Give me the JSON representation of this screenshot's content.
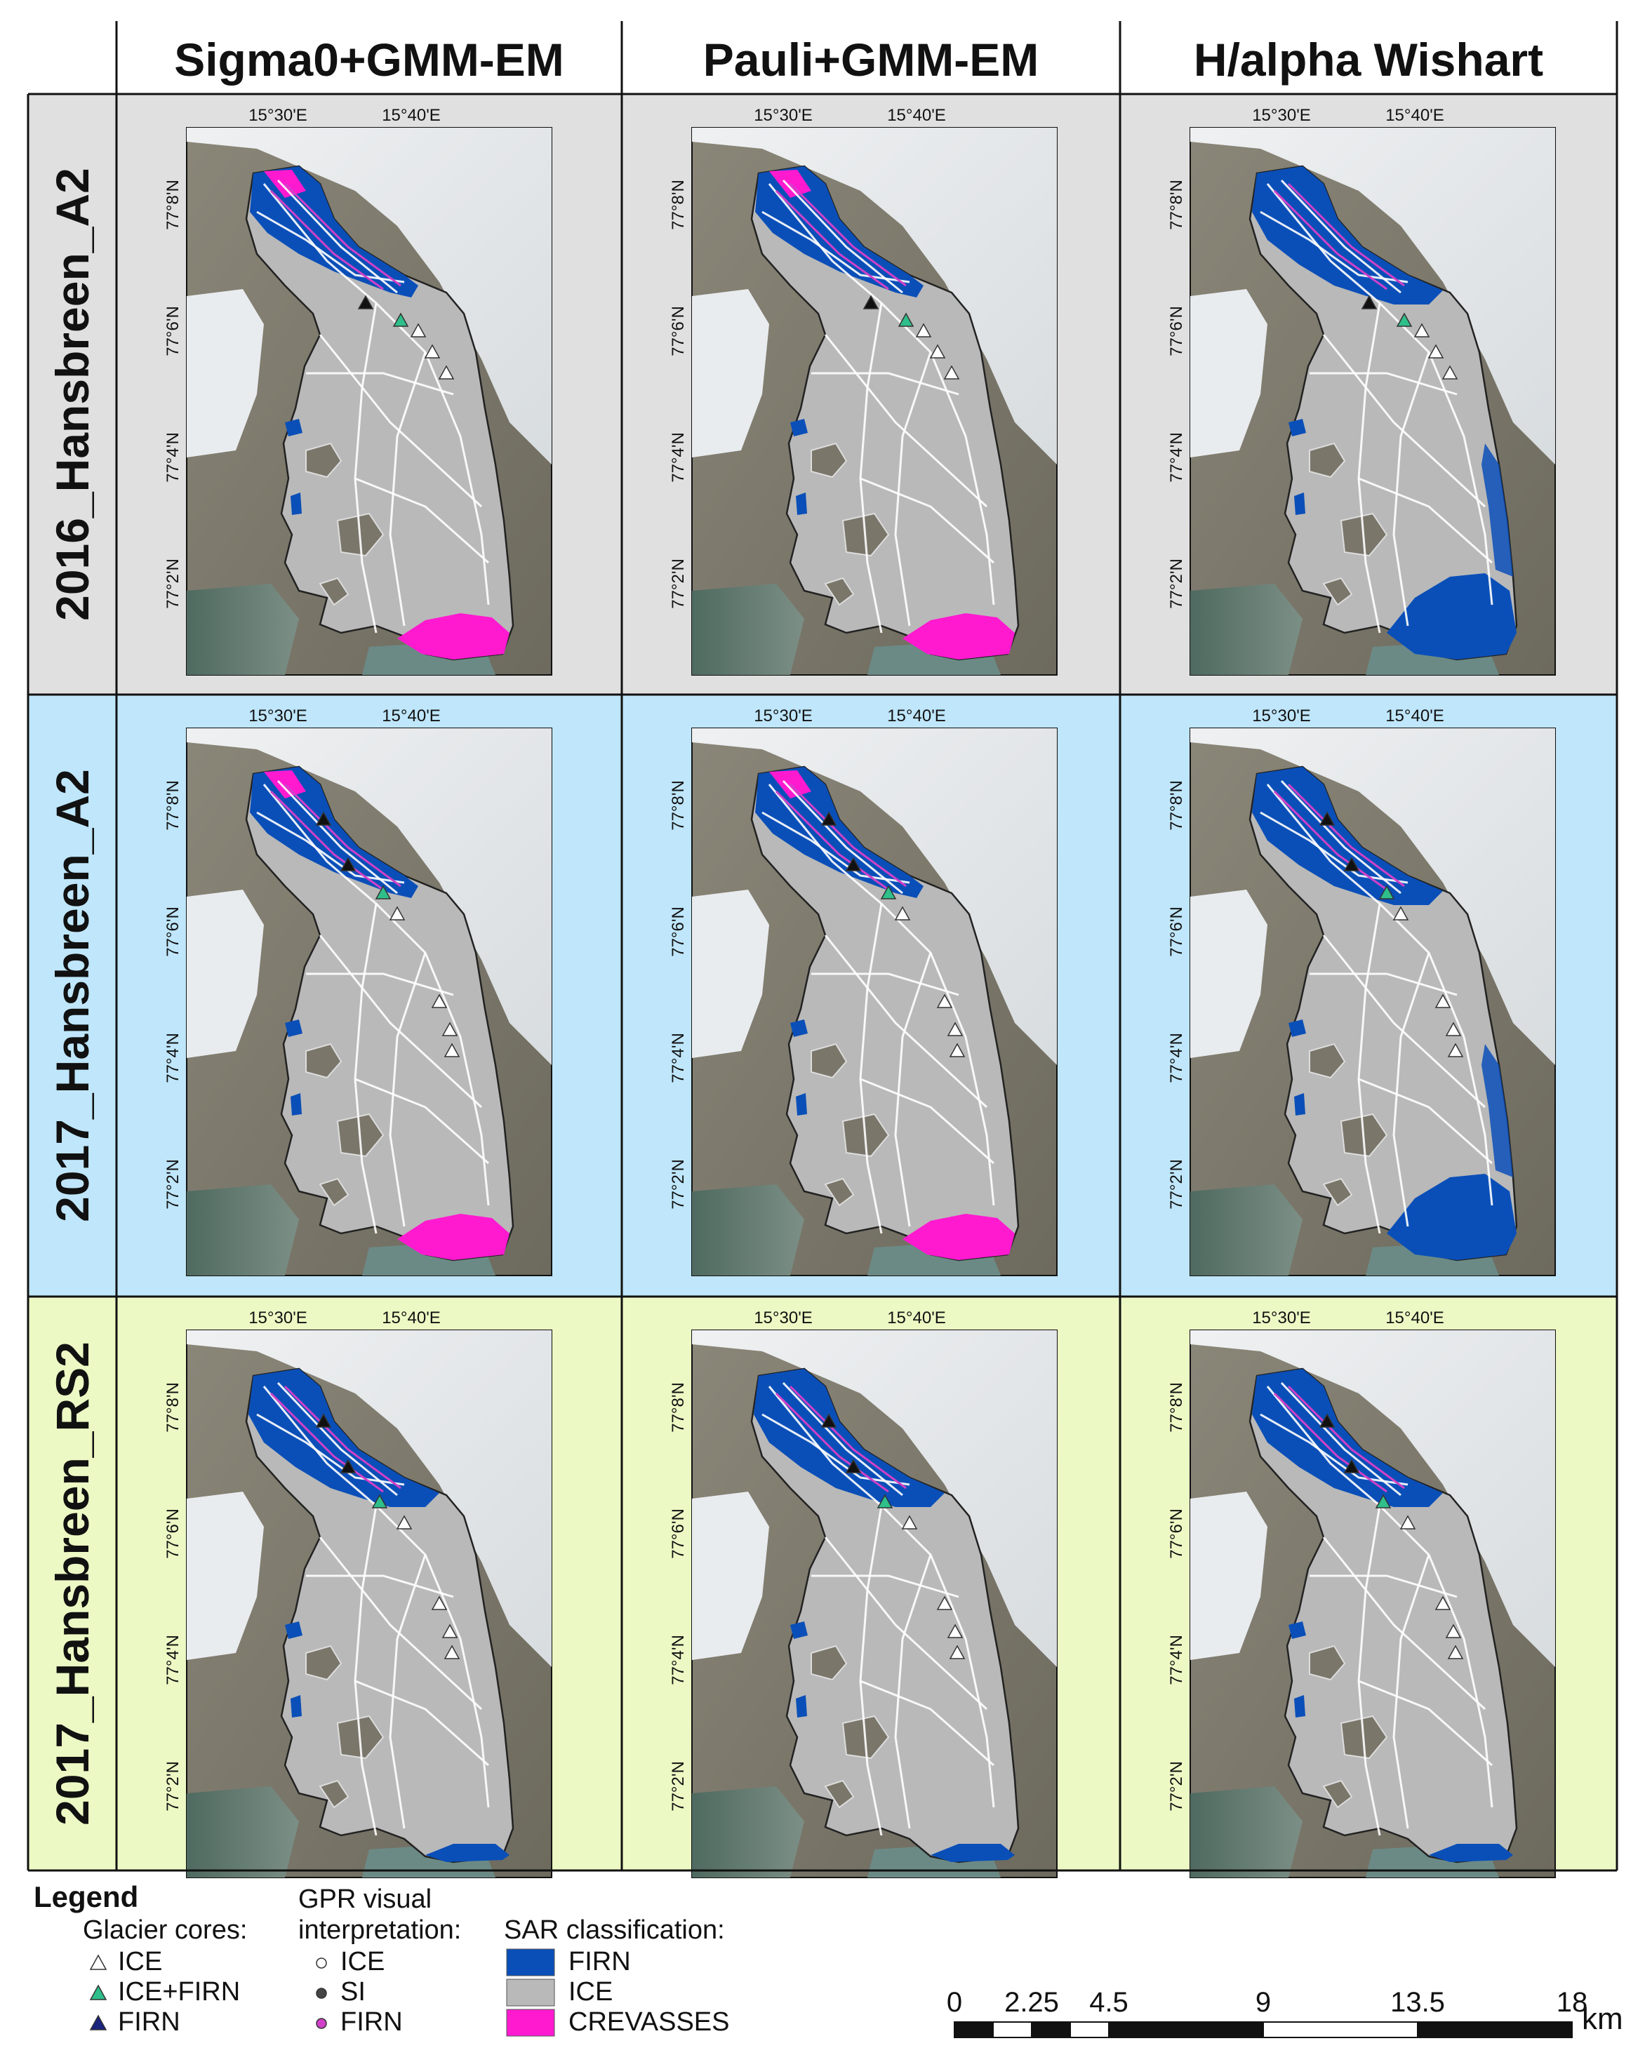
{
  "columns": [
    "Sigma0+GMM-EM",
    "Pauli+GMM-EM",
    "H/alpha Wishart"
  ],
  "rows": [
    {
      "label": "2016_Hansbreen_A2",
      "bg": "#e0e0e0"
    },
    {
      "label": "2017_Hansbreen_A2",
      "bg": "#bfe6fa"
    },
    {
      "label": "2017_Hansbreen_RS2",
      "bg": "#ecf9c4"
    }
  ],
  "axis_labels": {
    "lon": [
      "15°30'E",
      "15°40'E"
    ],
    "lat": [
      "77°8'N",
      "77°6'N",
      "77°4'N",
      "77°2'N"
    ]
  },
  "colors": {
    "firn": "#0a4fb8",
    "ice": "#b9b9b9",
    "crevasses": "#ff1ad0",
    "ice_firn_core": "#2fbf8a",
    "gpr_si": "#444444",
    "gpr_firn": "#d040c8"
  },
  "legend": {
    "title": "Legend",
    "glacier_cores": {
      "heading": "Glacier cores:",
      "items": [
        {
          "label": "ICE",
          "symbol": "triangle-hollow-icon"
        },
        {
          "label": "ICE+FIRN",
          "symbol": "triangle-green-icon"
        },
        {
          "label": "FIRN",
          "symbol": "triangle-dark-icon"
        }
      ]
    },
    "gpr": {
      "heading_line1": "GPR visual",
      "heading_line2": "interpretation:",
      "items": [
        {
          "label": "ICE",
          "symbol": "circle-hollow-icon"
        },
        {
          "label": "SI",
          "symbol": "circle-dark-icon"
        },
        {
          "label": "FIRN",
          "symbol": "circle-magenta-icon"
        }
      ]
    },
    "sar": {
      "heading": "SAR classification:",
      "items": [
        {
          "label": "FIRN",
          "key": "firn"
        },
        {
          "label": "ICE",
          "key": "ice"
        },
        {
          "label": "CREVASSES",
          "key": "crevasses"
        }
      ]
    }
  },
  "scale_bar": {
    "ticks": [
      "0",
      "2.25",
      "4.5",
      "9",
      "13.5",
      "18"
    ],
    "values": [
      0,
      2.25,
      4.5,
      9,
      13.5,
      18
    ],
    "unit": "km"
  }
}
